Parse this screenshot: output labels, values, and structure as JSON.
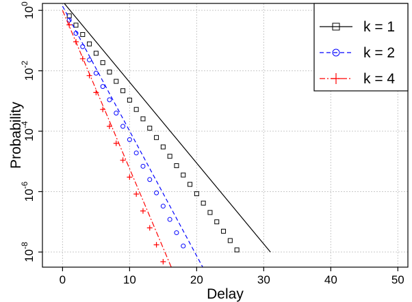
{
  "chart_data": {
    "type": "line",
    "title": "",
    "xlabel": "Delay",
    "ylabel": "Probability",
    "x_scale": "linear",
    "y_scale": "log",
    "xlim": [
      -3,
      51.5
    ],
    "ylim_exponent": [
      -8.5,
      0.23
    ],
    "xticks": [
      0,
      10,
      20,
      30,
      40,
      50
    ],
    "yticks_exponent": [
      0,
      -2,
      -4,
      -6,
      -8
    ],
    "ytick_base": "10",
    "grid": true,
    "legend_position": "top-right",
    "colors": {
      "k1": "#000000",
      "k2": "#0000ff",
      "k4": "#ff0000"
    },
    "series": [
      {
        "name": "k = 1",
        "color": "#000000",
        "line_style": "solid",
        "marker": "square",
        "line": {
          "x": [
            0,
            31
          ],
          "y": [
            1.995,
            1e-08
          ]
        },
        "points": {
          "x": [
            1,
            2,
            3,
            4,
            5,
            6,
            7,
            8,
            9,
            10,
            11,
            12,
            13,
            14,
            15,
            16,
            17,
            18,
            19,
            20,
            21,
            22,
            23,
            24,
            25,
            26
          ],
          "y": [
            0.6607,
            0.3236,
            0.1585,
            0.0776,
            0.038,
            0.0186,
            0.00912,
            0.00447,
            0.00219,
            0.00107,
            0.000525,
            0.000257,
            0.000126,
            6.17e-05,
            3.02e-05,
            1.48e-05,
            7.24e-06,
            3.55e-06,
            1.74e-06,
            8.51e-07,
            4.17e-07,
            2.04e-07,
            1e-07,
            4.9e-08,
            2.4e-08,
            1.175e-08
          ]
        }
      },
      {
        "name": "k = 2",
        "color": "#0000ff",
        "line_style": "dashed",
        "marker": "circle",
        "line": {
          "x": [
            0,
            21
          ],
          "y": [
            1.3804,
            2.88e-09
          ]
        },
        "points": {
          "x": [
            1,
            2,
            3,
            4,
            5,
            6,
            7,
            8,
            9,
            10,
            11,
            12,
            13,
            14,
            15,
            16,
            17,
            18
          ],
          "y": [
            0.4786,
            0.1738,
            0.0631,
            0.0229,
            0.00832,
            0.00302,
            0.0011,
            0.000398,
            0.000145,
            5.25e-05,
            1.91e-05,
            6.92e-06,
            2.51e-06,
            9.12e-07,
            3.31e-07,
            1.2e-07,
            4.37e-08,
            1.585e-08
          ]
        }
      },
      {
        "name": "k = 4",
        "color": "#ff0000",
        "line_style": "dashdot",
        "marker": "plus",
        "line": {
          "x": [
            0,
            16.5
          ],
          "y": [
            1.0,
            2.24e-09
          ]
        },
        "points": {
          "x": [
            1,
            2,
            3,
            4,
            5,
            6,
            7,
            8,
            9,
            10,
            11,
            12,
            13,
            14,
            15
          ],
          "y": [
            0.3311,
            0.0912,
            0.0251,
            0.00692,
            0.00191,
            0.000525,
            0.000145,
            3.98e-05,
            1.1e-05,
            3.02e-06,
            8.32e-07,
            2.29e-07,
            6.31e-08,
            1.74e-08,
            4.79e-09
          ]
        }
      }
    ]
  }
}
